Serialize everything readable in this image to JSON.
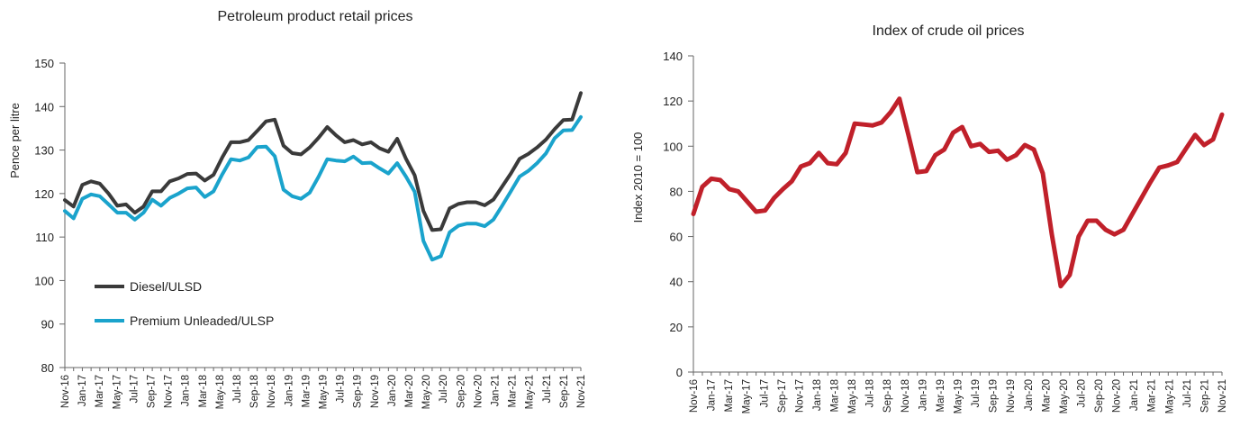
{
  "chart_data": [
    {
      "type": "line",
      "title": "Petroleum product retail prices",
      "ylabel": "Pence per litre",
      "xlabel": "",
      "ylim": [
        80,
        150
      ],
      "yticks": [
        80,
        90,
        100,
        110,
        120,
        130,
        140,
        150
      ],
      "x_tick_labels": [
        "Nov-16",
        "Jan-17",
        "Mar-17",
        "May-17",
        "Jul-17",
        "Sep-17",
        "Nov-17",
        "Jan-18",
        "Mar-18",
        "May-18",
        "Jul-18",
        "Sep-18",
        "Nov-18",
        "Jan-19",
        "Mar-19",
        "May-19",
        "Jul-19",
        "Sep-19",
        "Nov-19",
        "Jan-20",
        "Mar-20",
        "May-20",
        "Jul-20",
        "Sep-20",
        "Nov-20",
        "Jan-21",
        "Mar-21",
        "May-21",
        "Jul-21",
        "Sep-21",
        "Nov-21"
      ],
      "legend_position": "bottom-left",
      "series": [
        {
          "name": "Diesel/ULSD",
          "color": "#3a3a3a",
          "values": [
            118.5,
            117.0,
            122.0,
            122.8,
            122.3,
            120.0,
            117.2,
            117.5,
            115.6,
            117.0,
            120.5,
            120.5,
            122.8,
            123.5,
            124.5,
            124.6,
            123.0,
            124.3,
            128.3,
            131.8,
            131.8,
            132.3,
            134.4,
            136.6,
            137.0,
            131.0,
            129.3,
            129.0,
            130.6,
            132.8,
            135.3,
            133.4,
            131.8,
            132.3,
            131.3,
            131.8,
            130.4,
            129.6,
            132.6,
            128.0,
            124.2,
            116.0,
            111.6,
            111.8,
            116.6,
            117.6,
            118.0,
            118.0,
            117.3,
            118.6,
            121.6,
            124.6,
            128.0,
            129.1,
            130.6,
            132.4,
            134.8,
            136.9,
            137.0,
            143.1
          ]
        },
        {
          "name": "Premium Unleaded/ULSP",
          "color": "#1aa3cc",
          "values": [
            116.0,
            114.3,
            118.8,
            119.8,
            119.4,
            117.5,
            115.6,
            115.6,
            114.0,
            115.6,
            118.6,
            117.2,
            119.0,
            120.0,
            121.2,
            121.4,
            119.2,
            120.5,
            124.4,
            127.9,
            127.6,
            128.3,
            130.7,
            130.8,
            128.6,
            120.9,
            119.4,
            118.8,
            120.2,
            123.8,
            127.9,
            127.6,
            127.4,
            128.5,
            127.0,
            127.1,
            125.8,
            124.6,
            127.0,
            123.9,
            120.4,
            109.1,
            104.8,
            105.6,
            111.1,
            112.6,
            113.1,
            113.1,
            112.5,
            114.0,
            117.2,
            120.5,
            123.9,
            125.2,
            127.0,
            129.2,
            132.7,
            134.5,
            134.6,
            137.6
          ]
        }
      ]
    },
    {
      "type": "line",
      "title": "Index of crude oil prices",
      "ylabel": "Index 2010 = 100",
      "xlabel": "",
      "ylim": [
        0,
        140
      ],
      "yticks": [
        0,
        20,
        40,
        60,
        80,
        100,
        120,
        140
      ],
      "x_tick_labels": [
        "Nov-16",
        "Jan-17",
        "Mar-17",
        "May-17",
        "Jul-17",
        "Sep-17",
        "Nov-17",
        "Jan-18",
        "Mar-18",
        "May-18",
        "Jul-18",
        "Sep-18",
        "Nov-18",
        "Jan-19",
        "Mar-19",
        "May-19",
        "Jul-19",
        "Sep-19",
        "Nov-19",
        "Jan-20",
        "Mar-20",
        "May-20",
        "Jul-20",
        "Sep-20",
        "Nov-20",
        "Jan-21",
        "Mar-21",
        "May-21",
        "Jul-21",
        "Sep-21",
        "Nov-21"
      ],
      "series": [
        {
          "color": "#c0202a",
          "values": [
            70.0,
            82.0,
            85.6,
            85.0,
            81.0,
            80.0,
            75.5,
            71.0,
            71.5,
            77.0,
            81.0,
            84.5,
            91.0,
            92.5,
            97.0,
            92.5,
            92.0,
            97.0,
            110.0,
            109.6,
            109.2,
            110.5,
            115.0,
            121.0,
            105.0,
            88.5,
            89.0,
            96.0,
            98.5,
            106.0,
            108.5,
            100.0,
            101.0,
            97.5,
            98.0,
            94.0,
            96.0,
            100.5,
            98.5,
            88.0,
            61.0,
            38.0,
            43.0,
            60.0,
            67.0,
            67.0,
            63.0,
            61.0,
            63.0,
            70.0,
            77.0,
            84.0,
            90.5,
            91.5,
            93.0,
            99.0,
            105.0,
            100.5,
            103.0,
            114.0
          ]
        }
      ]
    }
  ]
}
